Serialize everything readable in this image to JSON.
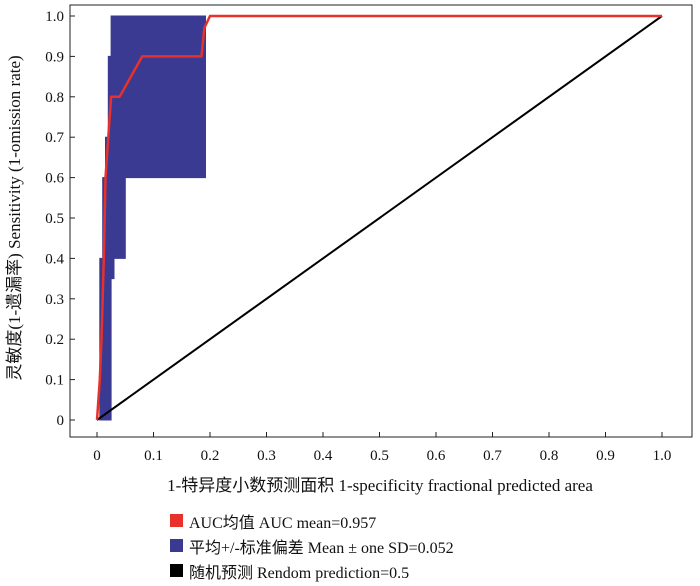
{
  "chart_data": {
    "type": "line",
    "xlabel": "1-特异度小数预测面积 1-specificity fractional predicted area",
    "ylabel": "灵敏度(1-遗漏率) Sensitivity (1-omission rate)",
    "xlim": [
      0,
      1
    ],
    "ylim": [
      0,
      1
    ],
    "x_ticks": [
      "0",
      "0.1",
      "0.2",
      "0.3",
      "0.4",
      "0.5",
      "0.6",
      "0.7",
      "0.8",
      "0.9",
      "1.0"
    ],
    "y_ticks": [
      "0",
      "0.1",
      "0.2",
      "0.3",
      "0.4",
      "0.5",
      "0.6",
      "0.7",
      "0.8",
      "0.9",
      "1.0"
    ],
    "grid": false,
    "legend_position": "bottom",
    "colors": {
      "auc": "#e8312a",
      "band": "#3a3a92",
      "random": "#000000"
    },
    "series": [
      {
        "name": "AUC均值 AUC mean=0.957",
        "x": [
          0,
          0.005,
          0.008,
          0.012,
          0.015,
          0.02,
          0.025,
          0.04,
          0.08,
          0.13,
          0.185,
          0.19,
          0.2,
          1.0
        ],
        "y": [
          0,
          0.1,
          0.2,
          0.4,
          0.6,
          0.7,
          0.8,
          0.8,
          0.9,
          0.9,
          0.9,
          0.97,
          1.0,
          1.0
        ]
      },
      {
        "name": "平均+/-标准偏差 Mean ± one SD=0.052",
        "x": [
          0.005,
          0.01,
          0.015,
          0.02,
          0.025,
          0.03,
          0.04,
          0.05,
          0.06,
          0.07,
          0.08,
          0.1,
          0.12,
          0.14,
          0.16,
          0.19
        ],
        "upper": [
          0.4,
          0.6,
          0.7,
          0.9,
          1.0,
          1.0,
          1.0,
          1.0,
          1.0,
          1.0,
          1.0,
          1.0,
          1.0,
          1.0,
          1.0,
          1.0
        ],
        "lower": [
          0.0,
          0.0,
          0.0,
          0.0,
          0.35,
          0.4,
          0.4,
          0.6,
          0.6,
          0.6,
          0.6,
          0.6,
          0.6,
          0.6,
          0.6,
          0.6
        ]
      },
      {
        "name": "随机预测 Rendom prediction=0.5",
        "x": [
          0,
          1
        ],
        "y": [
          0,
          1
        ]
      }
    ]
  }
}
